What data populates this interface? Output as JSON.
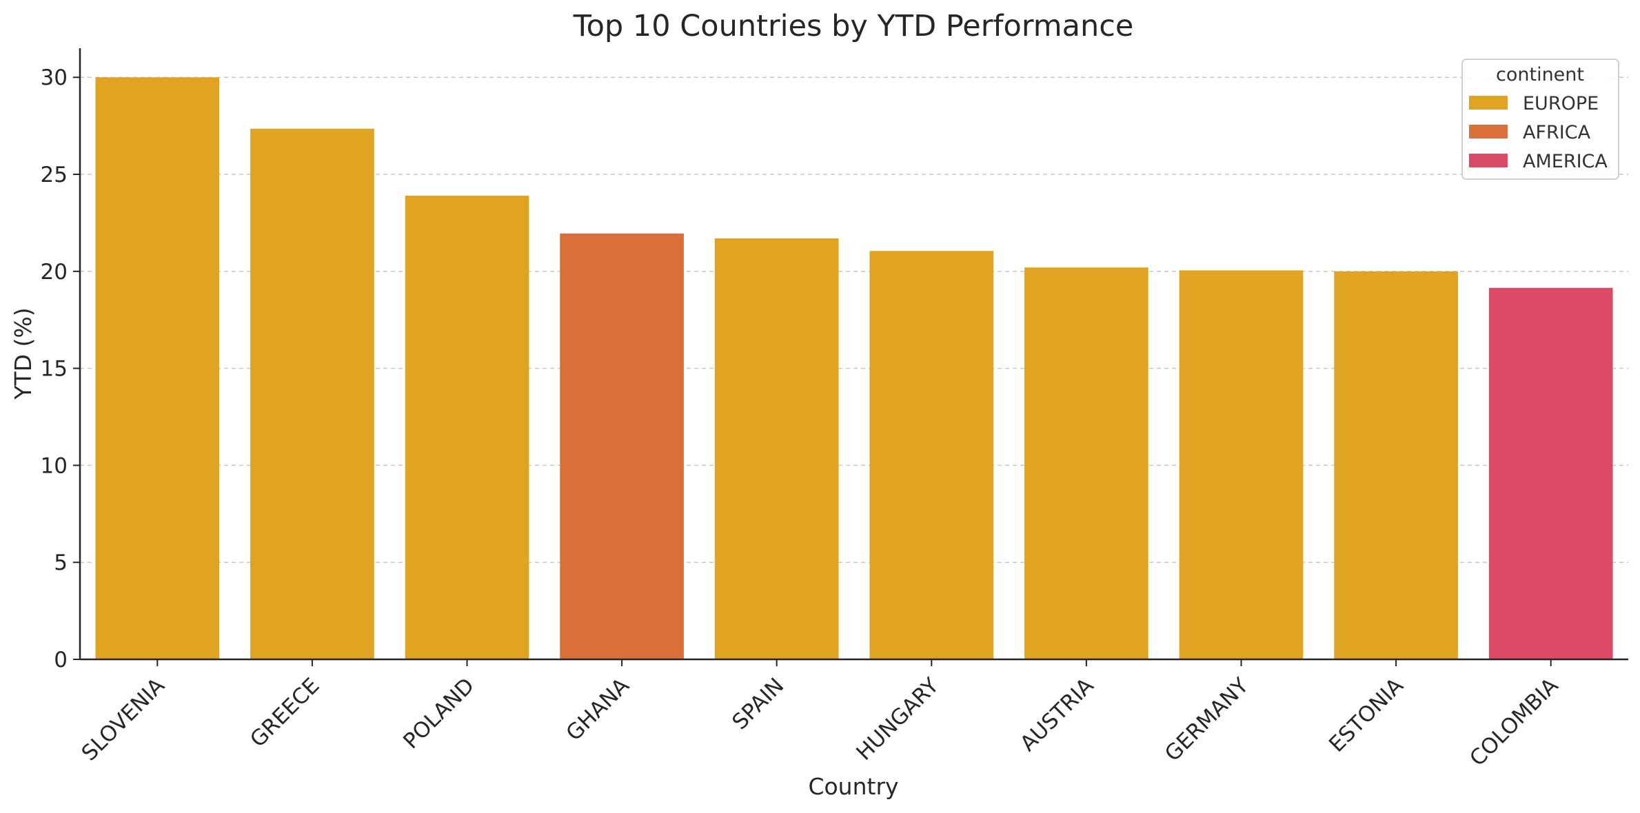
{
  "chart_data": {
    "type": "bar",
    "title": "Top 10 Countries by YTD Performance",
    "xlabel": "Country",
    "ylabel": "YTD (%)",
    "ylim": [
      0,
      31.5
    ],
    "yticks": [
      0,
      5,
      10,
      15,
      20,
      25,
      30
    ],
    "grid": "y-dashed",
    "categories": [
      "SLOVENIA",
      "GREECE",
      "POLAND",
      "GHANA",
      "SPAIN",
      "HUNGARY",
      "AUSTRIA",
      "GERMANY",
      "ESTONIA",
      "COLOMBIA"
    ],
    "values": [
      30.0,
      27.35,
      23.9,
      21.95,
      21.7,
      21.05,
      20.2,
      20.05,
      20.0,
      19.15
    ],
    "groups": [
      "EUROPE",
      "EUROPE",
      "EUROPE",
      "AFRICA",
      "EUROPE",
      "EUROPE",
      "EUROPE",
      "EUROPE",
      "EUROPE",
      "AMERICA"
    ],
    "legend": {
      "title": "continent",
      "placement": "top-right",
      "entries": [
        {
          "label": "EUROPE",
          "color": "#E0A422"
        },
        {
          "label": "AFRICA",
          "color": "#DA7039"
        },
        {
          "label": "AMERICA",
          "color": "#DA4A67"
        }
      ]
    }
  }
}
